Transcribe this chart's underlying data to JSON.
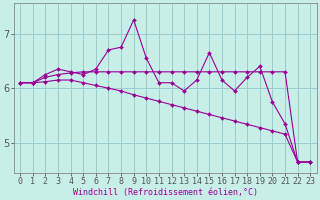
{
  "xlabel": "Windchill (Refroidissement éolien,°C)",
  "bg_color": "#c8eee8",
  "line_color": "#990099",
  "grid_color": "#99cccc",
  "spine_color": "#888888",
  "xlim": [
    -0.5,
    23.5
  ],
  "ylim": [
    4.45,
    7.55
  ],
  "xticks": [
    0,
    1,
    2,
    3,
    4,
    5,
    6,
    7,
    8,
    9,
    10,
    11,
    12,
    13,
    14,
    15,
    16,
    17,
    18,
    19,
    20,
    21,
    22,
    23
  ],
  "yticks": [
    5,
    6,
    7
  ],
  "series1_x": [
    0,
    1,
    2,
    3,
    4,
    5,
    6,
    7,
    8,
    9,
    10,
    11,
    12,
    13,
    14,
    15,
    16,
    17,
    18,
    19,
    20,
    21,
    22,
    23
  ],
  "series1_y": [
    6.1,
    6.1,
    6.25,
    6.35,
    6.3,
    6.25,
    6.35,
    6.7,
    6.75,
    7.25,
    6.55,
    6.1,
    6.1,
    5.95,
    6.15,
    6.65,
    6.15,
    5.95,
    6.2,
    6.4,
    5.75,
    5.35,
    4.65,
    4.65
  ],
  "series2_x": [
    0,
    1,
    2,
    3,
    4,
    5,
    6,
    7,
    8,
    9,
    10,
    11,
    12,
    13,
    14,
    15,
    16,
    17,
    18,
    19,
    20,
    21,
    22,
    23
  ],
  "series2_y": [
    6.1,
    6.1,
    6.2,
    6.25,
    6.28,
    6.3,
    6.3,
    6.3,
    6.3,
    6.3,
    6.3,
    6.3,
    6.3,
    6.3,
    6.3,
    6.3,
    6.3,
    6.3,
    6.3,
    6.3,
    6.3,
    6.3,
    4.65,
    4.65
  ],
  "series3_x": [
    0,
    1,
    2,
    3,
    4,
    5,
    6,
    7,
    8,
    9,
    10,
    11,
    12,
    13,
    14,
    15,
    16,
    17,
    18,
    19,
    20,
    21,
    22,
    23
  ],
  "series3_y": [
    6.1,
    6.1,
    6.12,
    6.15,
    6.15,
    6.1,
    6.05,
    6.0,
    5.95,
    5.88,
    5.82,
    5.76,
    5.7,
    5.64,
    5.58,
    5.52,
    5.46,
    5.4,
    5.34,
    5.28,
    5.22,
    5.16,
    4.65,
    4.65
  ],
  "marker": "D",
  "markersize": 2.0,
  "linewidth": 0.8,
  "xlabel_fontsize": 6.0,
  "tick_fontsize": 6.0
}
